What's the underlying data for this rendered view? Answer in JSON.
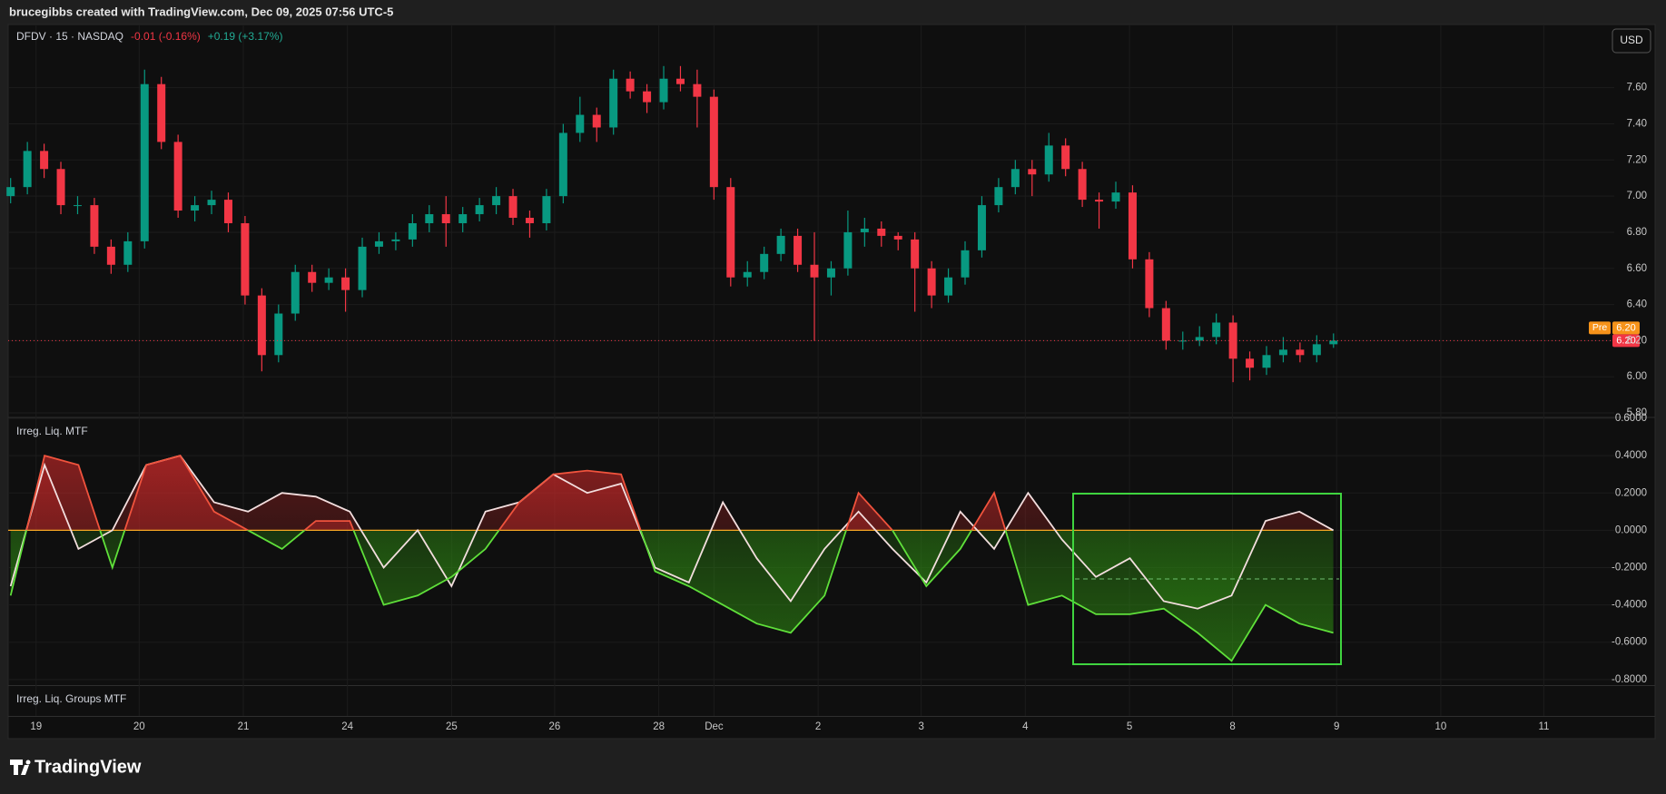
{
  "header": "brucegibbs created with TradingView.com, Dec 09, 2025 07:56 UTC-5",
  "brand": "TradingView",
  "currency": "USD",
  "chart_data": [
    {
      "type": "candlestick",
      "title": "DFDV · 15 · NASDAQ",
      "change": "-0.01 (-0.16%)",
      "premarket_change": "+0.19 (+3.17%)",
      "up_color": "#089981",
      "down_color": "#f23645",
      "x_labels": [
        "19",
        "20",
        "21",
        "24",
        "25",
        "26",
        "28",
        "Dec",
        "2",
        "3",
        "4",
        "5",
        "8",
        "9",
        "10",
        "11"
      ],
      "ylim": [
        5.78,
        7.95
      ],
      "yticks": [
        {
          "value": 5.8,
          "label": "5.80"
        },
        {
          "value": 6.0,
          "label": "6.00"
        },
        {
          "value": 6.2,
          "label": "6.20"
        },
        {
          "value": 6.4,
          "label": "6.40"
        },
        {
          "value": 6.6,
          "label": "6.60"
        },
        {
          "value": 6.8,
          "label": "6.80"
        },
        {
          "value": 7.0,
          "label": "7.00"
        },
        {
          "value": 7.2,
          "label": "7.20"
        },
        {
          "value": 7.4,
          "label": "7.40"
        },
        {
          "value": 7.6,
          "label": "7.60"
        }
      ],
      "grid": true,
      "last_price": {
        "value": 6.2,
        "label": "6.20"
      },
      "premarket_price": {
        "tag": "Pre",
        "value": 6.2,
        "label": "6.20"
      },
      "candles": [
        [
          7.0,
          7.1,
          6.96,
          7.05
        ],
        [
          7.05,
          7.3,
          7.01,
          7.25
        ],
        [
          7.25,
          7.29,
          7.1,
          7.15
        ],
        [
          7.15,
          7.19,
          6.9,
          6.95
        ],
        [
          6.95,
          7.0,
          6.9,
          6.95
        ],
        [
          6.95,
          6.99,
          6.68,
          6.72
        ],
        [
          6.72,
          6.76,
          6.57,
          6.62
        ],
        [
          6.62,
          6.8,
          6.58,
          6.75
        ],
        [
          6.75,
          7.7,
          6.71,
          7.62
        ],
        [
          7.62,
          7.66,
          7.26,
          7.3
        ],
        [
          7.3,
          7.34,
          6.88,
          6.92
        ],
        [
          6.92,
          7.0,
          6.86,
          6.95
        ],
        [
          6.95,
          7.03,
          6.9,
          6.98
        ],
        [
          6.98,
          7.02,
          6.8,
          6.85
        ],
        [
          6.85,
          6.89,
          6.4,
          6.45
        ],
        [
          6.45,
          6.49,
          6.03,
          6.12
        ],
        [
          6.12,
          6.4,
          6.08,
          6.35
        ],
        [
          6.35,
          6.62,
          6.31,
          6.58
        ],
        [
          6.58,
          6.62,
          6.47,
          6.52
        ],
        [
          6.52,
          6.6,
          6.48,
          6.55
        ],
        [
          6.55,
          6.6,
          6.36,
          6.48
        ],
        [
          6.48,
          6.77,
          6.44,
          6.72
        ],
        [
          6.72,
          6.8,
          6.68,
          6.75
        ],
        [
          6.75,
          6.8,
          6.7,
          6.76
        ],
        [
          6.76,
          6.9,
          6.72,
          6.85
        ],
        [
          6.85,
          6.95,
          6.8,
          6.9
        ],
        [
          6.9,
          7.0,
          6.72,
          6.85
        ],
        [
          6.85,
          6.94,
          6.8,
          6.9
        ],
        [
          6.9,
          6.99,
          6.86,
          6.95
        ],
        [
          6.95,
          7.05,
          6.9,
          7.0
        ],
        [
          7.0,
          7.04,
          6.84,
          6.88
        ],
        [
          6.88,
          6.92,
          6.77,
          6.85
        ],
        [
          6.85,
          7.04,
          6.81,
          7.0
        ],
        [
          7.0,
          7.4,
          6.96,
          7.35
        ],
        [
          7.35,
          7.55,
          7.3,
          7.45
        ],
        [
          7.45,
          7.49,
          7.3,
          7.38
        ],
        [
          7.38,
          7.7,
          7.34,
          7.65
        ],
        [
          7.65,
          7.69,
          7.54,
          7.58
        ],
        [
          7.58,
          7.62,
          7.46,
          7.52
        ],
        [
          7.52,
          7.72,
          7.48,
          7.65
        ],
        [
          7.65,
          7.72,
          7.58,
          7.62
        ],
        [
          7.62,
          7.7,
          7.38,
          7.55
        ],
        [
          7.55,
          7.59,
          6.98,
          7.05
        ],
        [
          7.05,
          7.1,
          6.5,
          6.55
        ],
        [
          6.55,
          6.64,
          6.5,
          6.58
        ],
        [
          6.58,
          6.72,
          6.54,
          6.68
        ],
        [
          6.68,
          6.82,
          6.64,
          6.78
        ],
        [
          6.78,
          6.82,
          6.58,
          6.62
        ],
        [
          6.62,
          6.8,
          6.2,
          6.55
        ],
        [
          6.55,
          6.64,
          6.45,
          6.6
        ],
        [
          6.6,
          6.92,
          6.56,
          6.8
        ],
        [
          6.8,
          6.88,
          6.72,
          6.82
        ],
        [
          6.82,
          6.86,
          6.72,
          6.78
        ],
        [
          6.78,
          6.8,
          6.7,
          6.76
        ],
        [
          6.76,
          6.8,
          6.36,
          6.6
        ],
        [
          6.6,
          6.64,
          6.38,
          6.45
        ],
        [
          6.45,
          6.6,
          6.41,
          6.55
        ],
        [
          6.55,
          6.75,
          6.51,
          6.7
        ],
        [
          6.7,
          7.0,
          6.66,
          6.95
        ],
        [
          6.95,
          7.1,
          6.91,
          7.05
        ],
        [
          7.05,
          7.2,
          7.01,
          7.15
        ],
        [
          7.15,
          7.2,
          7.0,
          7.12
        ],
        [
          7.12,
          7.35,
          7.08,
          7.28
        ],
        [
          7.28,
          7.32,
          7.11,
          7.15
        ],
        [
          7.15,
          7.19,
          6.94,
          6.98
        ],
        [
          6.98,
          7.02,
          6.82,
          6.97
        ],
        [
          6.97,
          7.08,
          6.93,
          7.02
        ],
        [
          7.02,
          7.06,
          6.6,
          6.65
        ],
        [
          6.65,
          6.69,
          6.33,
          6.38
        ],
        [
          6.38,
          6.42,
          6.15,
          6.2
        ],
        [
          6.2,
          6.25,
          6.15,
          6.2
        ],
        [
          6.2,
          6.28,
          6.17,
          6.22
        ],
        [
          6.22,
          6.35,
          6.18,
          6.3
        ],
        [
          6.3,
          6.34,
          5.97,
          6.1
        ],
        [
          6.1,
          6.14,
          5.98,
          6.05
        ],
        [
          6.05,
          6.17,
          6.01,
          6.12
        ],
        [
          6.12,
          6.22,
          6.08,
          6.15
        ],
        [
          6.15,
          6.19,
          6.08,
          6.12
        ],
        [
          6.12,
          6.23,
          6.08,
          6.18
        ],
        [
          6.18,
          6.24,
          6.16,
          6.2
        ]
      ]
    },
    {
      "type": "line",
      "title": "Irreg. Liq. MTF",
      "ylim": [
        -0.83,
        0.6
      ],
      "yticks": [
        {
          "value": 0.6,
          "label": "0.6000"
        },
        {
          "value": 0.4,
          "label": "0.4000"
        },
        {
          "value": 0.2,
          "label": "0.2000"
        },
        {
          "value": 0,
          "label": "0.0000"
        },
        {
          "value": -0.2,
          "label": "-0.2000"
        },
        {
          "value": -0.4,
          "label": "-0.4000"
        },
        {
          "value": -0.6,
          "label": "-0.6000"
        },
        {
          "value": -0.8,
          "label": "-0.8000"
        }
      ],
      "zero_color": "#f5a623",
      "fill_up": "#c62828",
      "fill_down": "#2e8b12",
      "series": [
        {
          "color": "#f3dede",
          "values": [
            -0.3,
            0.35,
            -0.1,
            0.0,
            0.35,
            0.4,
            0.15,
            0.1,
            0.2,
            0.18,
            0.1,
            -0.2,
            0.0,
            -0.3,
            0.1,
            0.15,
            0.3,
            0.2,
            0.25,
            -0.2,
            -0.28,
            0.15,
            -0.15,
            -0.38,
            -0.1,
            0.1,
            -0.1,
            -0.28,
            0.1,
            -0.1,
            0.2,
            -0.05,
            -0.25,
            -0.15,
            -0.38,
            -0.42,
            -0.35,
            0.05,
            0.1,
            0.0
          ]
        },
        {
          "color_up": "#f0533d",
          "color_down": "#5fe03a",
          "values": [
            -0.35,
            0.4,
            0.35,
            -0.2,
            0.35,
            0.4,
            0.1,
            0.0,
            -0.1,
            0.05,
            0.05,
            -0.4,
            -0.35,
            -0.25,
            -0.1,
            0.15,
            0.3,
            0.32,
            0.3,
            -0.22,
            -0.3,
            -0.4,
            -0.5,
            -0.55,
            -0.35,
            0.2,
            0.0,
            -0.3,
            -0.1,
            0.2,
            -0.4,
            -0.35,
            -0.45,
            -0.45,
            -0.42,
            -0.55,
            -0.7,
            -0.4,
            -0.5,
            -0.55
          ]
        }
      ]
    },
    {
      "type": "empty",
      "title": "Irreg. Liq. Groups MTF"
    }
  ]
}
